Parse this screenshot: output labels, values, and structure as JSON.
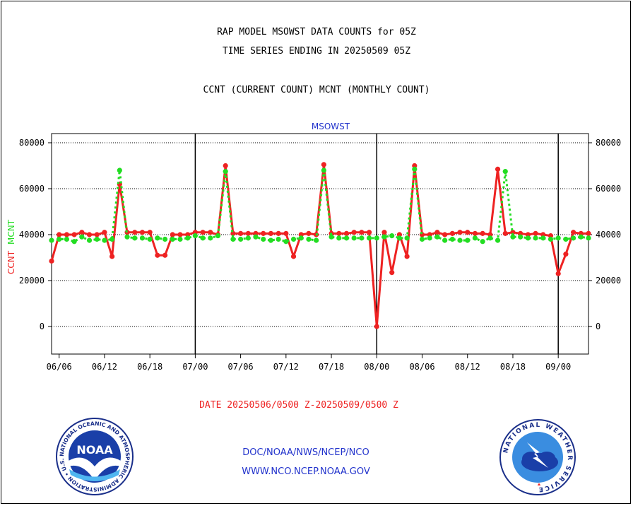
{
  "header": {
    "line1": "RAP MODEL MSOWST DATA COUNTS for 05Z",
    "line2": "TIME SERIES ENDING IN 20250509 05Z",
    "line3": "CCNT (CURRENT COUNT) MCNT (MONTHLY COUNT)"
  },
  "footer": {
    "date_range": "DATE 20250506/0500 Z-20250509/0500 Z",
    "org": "DOC/NOAA/NWS/NCEP/NCO",
    "url": "WWW.NCO.NCEP.NOAA.GOV"
  },
  "logos": {
    "noaa_text": "NOAA",
    "noaa_ring": "NATIONAL OCEANIC AND ATMOSPHERIC ADMINISTRATION • U.S. DEPARTMENT OF COMMERCE",
    "nws_ring": "NATIONAL WEATHER SERVICE"
  },
  "colors": {
    "ccnt": "#ee2222",
    "mcnt": "#22dd22",
    "panel_label": "#2233cc",
    "axis": "#000000"
  },
  "chart_data": {
    "type": "line",
    "panel_label": "MSOWST",
    "ylabel_left": [
      "CCNT",
      "MCNT"
    ],
    "yticks": [
      0,
      20000,
      40000,
      60000,
      80000
    ],
    "ytick_labels": [
      "0",
      "20000",
      "40000",
      "60000",
      "80000"
    ],
    "ylim": [
      -12000,
      84000
    ],
    "x_index_range": [
      0,
      71
    ],
    "xtick_labels": [
      "06/06",
      "06/12",
      "06/18",
      "07/00",
      "07/06",
      "07/12",
      "07/18",
      "08/00",
      "08/06",
      "08/12",
      "08/18",
      "09/00"
    ],
    "xtick_index": [
      1,
      7,
      13,
      19,
      25,
      31,
      37,
      43,
      49,
      55,
      61,
      67
    ],
    "day_boundaries_index": [
      19,
      43,
      67
    ],
    "grid": "horizontal dotted",
    "series": [
      {
        "name": "CCNT",
        "values": [
          28500,
          40000,
          40000,
          40000,
          41000,
          40000,
          40000,
          41000,
          30500,
          62000,
          41000,
          41000,
          41000,
          41000,
          31000,
          31000,
          40000,
          40000,
          40000,
          41000,
          41000,
          41000,
          40000,
          70000,
          40500,
          40500,
          40500,
          40500,
          40500,
          40500,
          40500,
          40500,
          30500,
          40000,
          40500,
          40000,
          70500,
          40500,
          40500,
          40500,
          41000,
          41000,
          41000,
          0,
          41000,
          23500,
          40000,
          30500,
          70000,
          40000,
          40000,
          41000,
          40000,
          40500,
          41000,
          41000,
          40500,
          40500,
          40000,
          68500,
          40500,
          41000,
          40500,
          40000,
          40500,
          40000,
          39500,
          23000,
          31500,
          41000,
          40500,
          40500
        ]
      },
      {
        "name": "MCNT",
        "values": [
          37500,
          38000,
          38000,
          37000,
          39000,
          37500,
          38000,
          37500,
          38000,
          68000,
          39000,
          38500,
          38500,
          38000,
          38500,
          38000,
          38000,
          38000,
          38500,
          39500,
          38500,
          38500,
          39500,
          67500,
          38000,
          38000,
          38500,
          39000,
          38000,
          37500,
          38000,
          37000,
          38000,
          38500,
          38000,
          37500,
          68000,
          39000,
          38500,
          38500,
          38500,
          38500,
          38500,
          38500,
          39000,
          39500,
          38500,
          38500,
          68500,
          38000,
          38500,
          39000,
          37500,
          38000,
          37500,
          37500,
          38500,
          37000,
          38500,
          37500,
          67500,
          39000,
          39000,
          38500,
          38500,
          38500,
          38000,
          38500,
          38000,
          38500,
          39000,
          38500
        ]
      }
    ]
  }
}
